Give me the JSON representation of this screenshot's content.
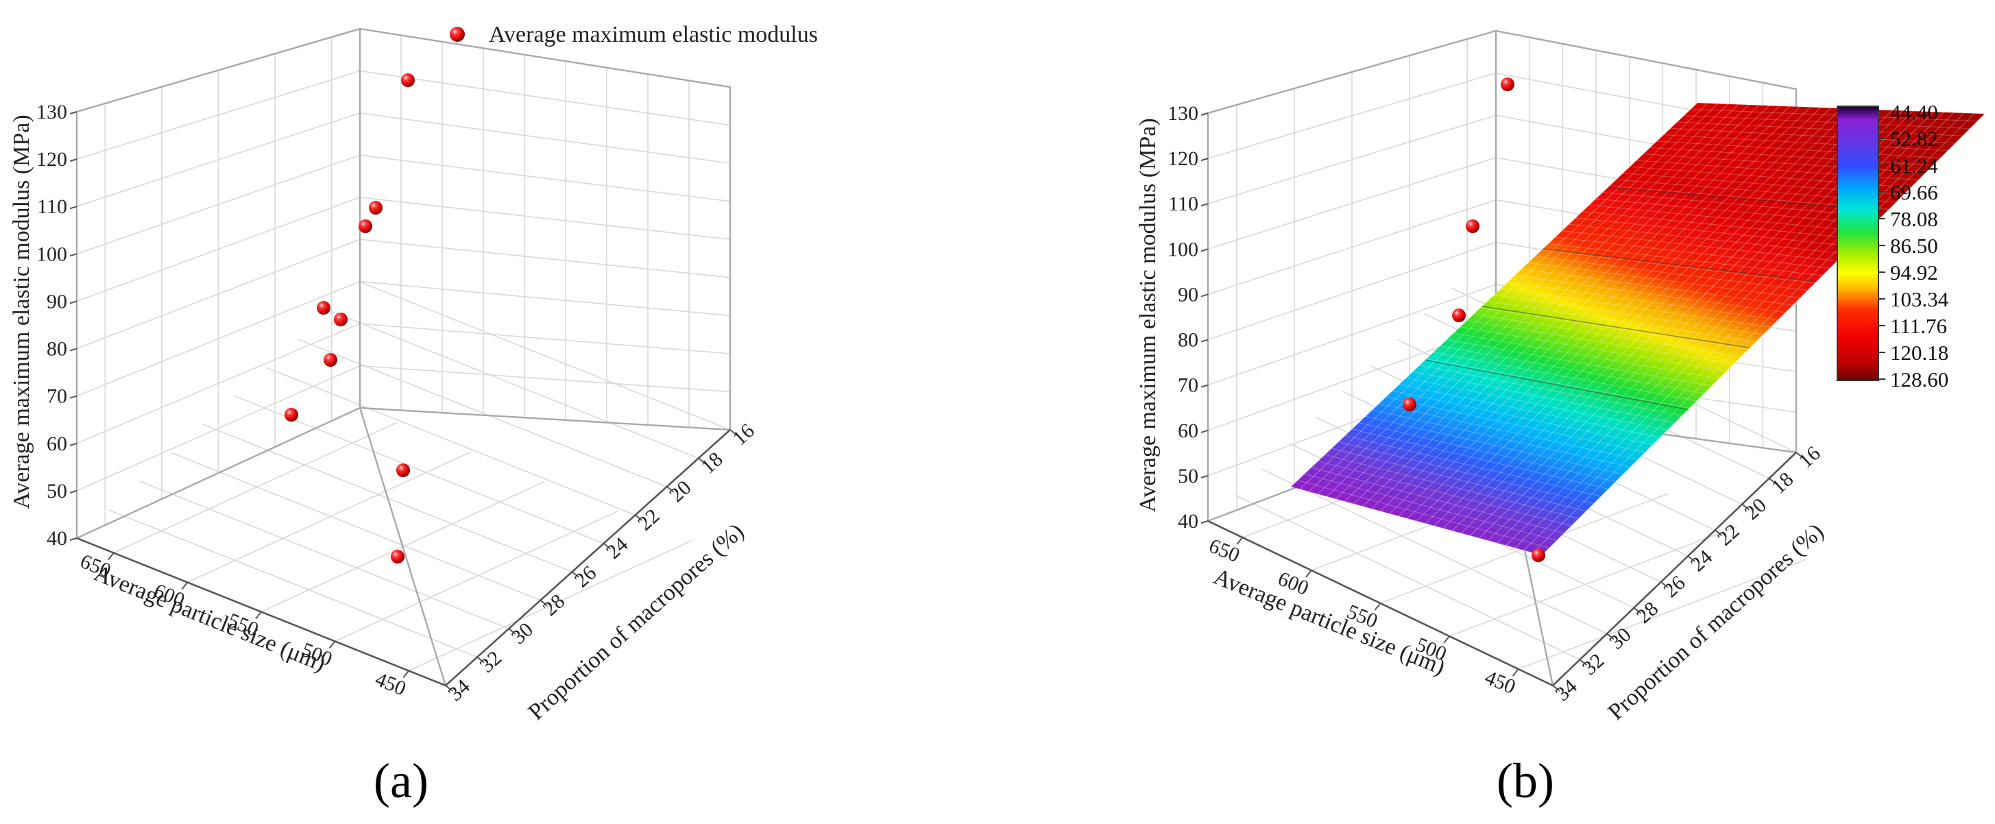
{
  "panels": [
    {
      "label": "(a)",
      "legend": "Average maximum elastic modulus",
      "chart_data": {
        "type": "scatter",
        "z_label": "Average maximum elastic modulus (MPa)",
        "x_label": "Average particle size (μm)",
        "y_label": "Proportion of macropores (%)",
        "z_ticks": [
          40,
          50,
          60,
          70,
          80,
          90,
          100,
          110,
          120,
          130
        ],
        "x_ticks": [
          650,
          600,
          550,
          500,
          450
        ],
        "y_ticks": [
          16,
          18,
          20,
          22,
          24,
          26,
          28,
          30,
          32,
          34
        ],
        "z_range": [
          40,
          130
        ],
        "x_range": [
          420,
          680
        ],
        "y_range": [
          16,
          34
        ],
        "grid": true,
        "legend_position": "top",
        "series": [
          {
            "name": "Average maximum elastic modulus",
            "color": "#e30000",
            "points": [
              {
                "x": 460,
                "y": 33,
                "z": 128.6
              },
              {
                "x": 520,
                "y": 30,
                "z": 110.0
              },
              {
                "x": 550,
                "y": 30,
                "z": 106.0
              },
              {
                "x": 560,
                "y": 28,
                "z": 89.0
              },
              {
                "x": 545,
                "y": 28,
                "z": 87.0
              },
              {
                "x": 590,
                "y": 27,
                "z": 80.0
              },
              {
                "x": 630,
                "y": 27,
                "z": 68.0
              },
              {
                "x": 480,
                "y": 20,
                "z": 52.0
              },
              {
                "x": 470,
                "y": 16,
                "z": 44.4
              }
            ]
          }
        ]
      }
    },
    {
      "label": "(b)",
      "chart_data": {
        "type": "surface",
        "z_label": "Average maximum elastic modulus (MPa)",
        "x_label": "Average particle size (μm)",
        "y_label": "Proportion of macropores (%)",
        "z_ticks": [
          40,
          50,
          60,
          70,
          80,
          90,
          100,
          110,
          120,
          130
        ],
        "x_ticks": [
          650,
          600,
          550,
          500,
          450
        ],
        "y_ticks": [
          16,
          18,
          20,
          22,
          24,
          26,
          28,
          30,
          32,
          34
        ],
        "z_range": [
          40,
          130
        ],
        "grid": true,
        "colorbar": {
          "ticks": [
            "44.40",
            "52.82",
            "61.24",
            "69.66",
            "78.08",
            "86.50",
            "94.92",
            "103.34",
            "111.76",
            "120.18",
            "128.60"
          ],
          "colors": [
            "#1a0033",
            "#7a1fd6",
            "#3b3bff",
            "#00a0ff",
            "#00e8d8",
            "#22e33b",
            "#9eee00",
            "#ffff00",
            "#ffb000",
            "#ff3000",
            "#f20000",
            "#c00000",
            "#7a0000"
          ]
        },
        "series": [
          {
            "name": "",
            "color": "#e30000",
            "points": [
              {
                "x": 450,
                "y": 16,
                "z": 128.6
              },
              {
                "x": 550,
                "y": 24,
                "z": 107.0
              },
              {
                "x": 570,
                "y": 26,
                "z": 90.0
              },
              {
                "x": 620,
                "y": 28,
                "z": 70.0
              },
              {
                "x": 460,
                "y": 34,
                "z": 44.4
              }
            ]
          }
        ]
      }
    }
  ]
}
